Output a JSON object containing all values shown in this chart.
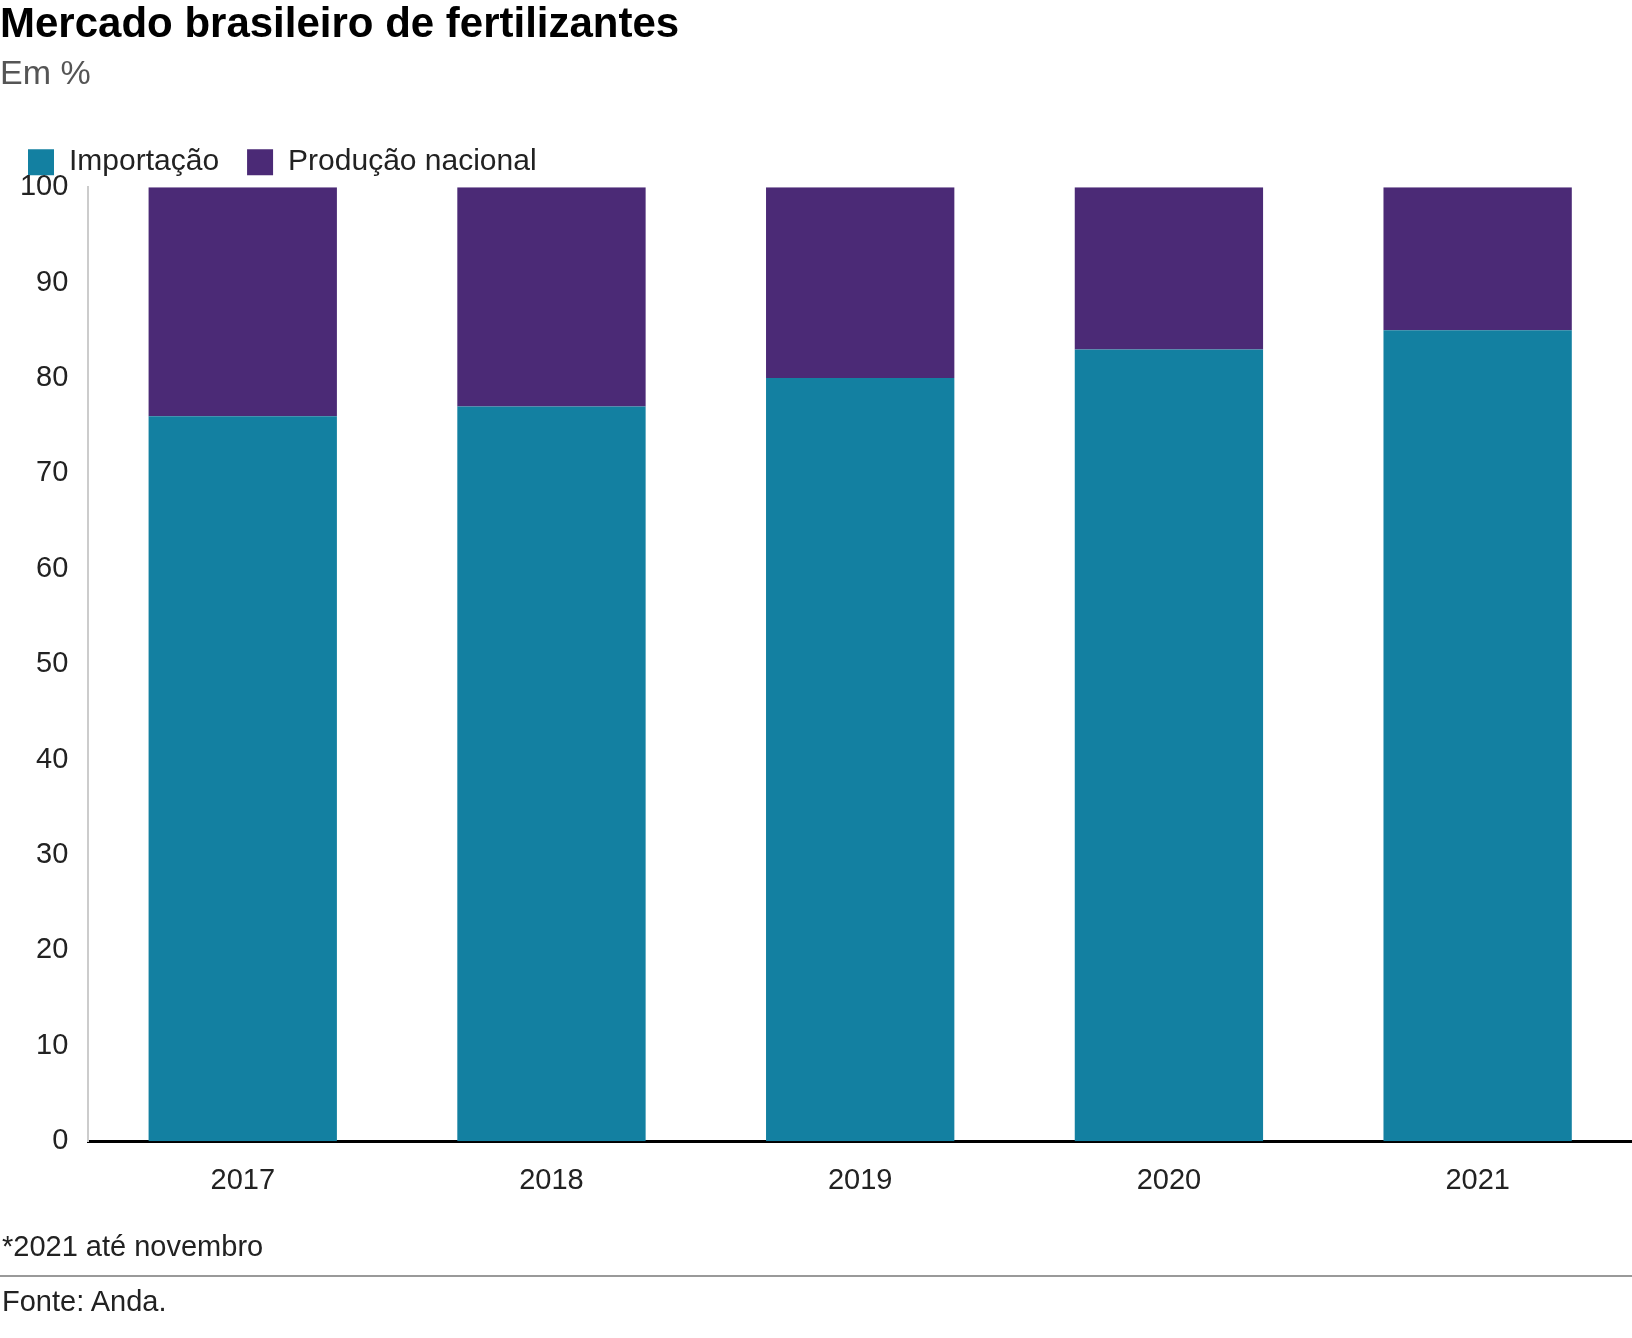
{
  "chart_data": {
    "type": "bar",
    "title": "Mercado brasileiro de fertilizantes",
    "subtitle": "Em %",
    "categories": [
      "2017",
      "2018",
      "2019",
      "2020",
      "2021"
    ],
    "series": [
      {
        "name": "Importação",
        "color": "#1380a1",
        "values": [
          76,
          77,
          80,
          83,
          85
        ]
      },
      {
        "name": "Produção nacional",
        "color": "#4b2a76",
        "values": [
          24,
          23,
          20,
          17,
          15
        ]
      }
    ],
    "stacked": true,
    "ylim": [
      0,
      100
    ],
    "yticks": [
      0,
      10,
      20,
      30,
      40,
      50,
      60,
      70,
      80,
      90,
      100
    ],
    "grid": false,
    "legend": "top left",
    "annotations": [
      "*2021 até novembro",
      "Fonte: Anda."
    ]
  }
}
